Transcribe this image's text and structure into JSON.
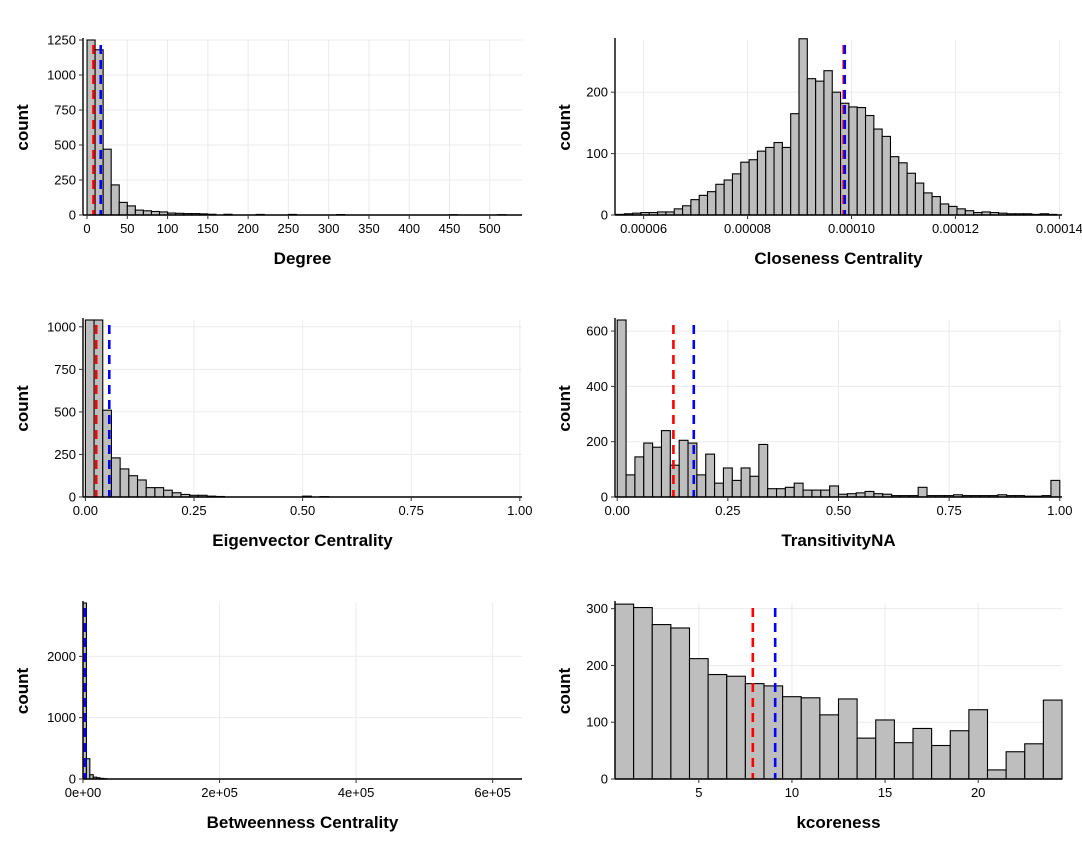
{
  "chart_data": [
    {
      "type": "bar",
      "panel": "degree",
      "xlabel": "Degree",
      "ylabel": "count",
      "xlim": [
        -5,
        540
      ],
      "ylim": [
        0,
        1250
      ],
      "x_ticks": [
        0,
        50,
        100,
        150,
        200,
        250,
        300,
        350,
        400,
        450,
        500
      ],
      "x_tick_labels": [
        "0",
        "50",
        "100",
        "150",
        "200",
        "250",
        "300",
        "350",
        "400",
        "450",
        "500"
      ],
      "y_ticks": [
        0,
        250,
        500,
        750,
        1000,
        1250
      ],
      "y_tick_labels": [
        "0",
        "250",
        "500",
        "750",
        "1000",
        "1250"
      ],
      "bin_width": 10,
      "bin_starts": [
        0,
        10,
        20,
        30,
        40,
        50,
        60,
        70,
        80,
        90,
        100,
        110,
        120,
        130,
        140,
        150,
        170,
        210,
        250,
        310,
        450,
        510
      ],
      "values": [
        1250,
        1180,
        470,
        215,
        90,
        65,
        35,
        30,
        25,
        22,
        14,
        12,
        10,
        10,
        8,
        5,
        5,
        4,
        4,
        3,
        2,
        2
      ],
      "mean_lines": [
        {
          "color": "#ff0000",
          "x": 8
        },
        {
          "color": "#0000ff",
          "x": 17
        }
      ]
    },
    {
      "type": "bar",
      "panel": "closeness",
      "xlabel": "Closeness Centrality",
      "ylabel": "count",
      "xlim": [
        5.45e-05,
        0.0001405
      ],
      "ylim": [
        0,
        285
      ],
      "x_ticks": [
        6e-05,
        8e-05,
        0.0001,
        0.00012,
        0.00014
      ],
      "x_tick_labels": [
        "0.00006",
        "0.00008",
        "0.00010",
        "0.00012",
        "0.00014"
      ],
      "y_ticks": [
        0,
        100,
        200
      ],
      "y_tick_labels": [
        "0",
        "100",
        "200"
      ],
      "bin_width": 1.6e-06,
      "bin_starts": [
        5.47e-05,
        5.63e-05,
        5.79e-05,
        5.95e-05,
        6.11e-05,
        6.27e-05,
        6.43e-05,
        6.59e-05,
        6.75e-05,
        6.91e-05,
        7.07e-05,
        7.23e-05,
        7.39e-05,
        7.55e-05,
        7.71e-05,
        7.87e-05,
        8.03e-05,
        8.19e-05,
        8.35e-05,
        8.51e-05,
        8.67e-05,
        8.83e-05,
        8.99e-05,
        9.15e-05,
        9.31e-05,
        9.47e-05,
        9.63e-05,
        9.79e-05,
        9.95e-05,
        0.0001011,
        0.0001027,
        0.0001043,
        0.0001059,
        0.0001075,
        0.0001091,
        0.0001107,
        0.0001123,
        0.0001139,
        0.0001155,
        0.0001171,
        0.0001187,
        0.0001203,
        0.0001219,
        0.0001235,
        0.0001251,
        0.0001267,
        0.0001283,
        0.0001299,
        0.0001315,
        0.0001331,
        0.0001347,
        0.0001363,
        0.0001379
      ],
      "values": [
        1,
        2,
        3,
        4,
        4,
        5,
        5,
        10,
        15,
        25,
        32,
        38,
        50,
        57,
        67,
        86,
        90,
        104,
        110,
        118,
        110,
        165,
        287,
        222,
        218,
        235,
        200,
        182,
        176,
        175,
        162,
        140,
        128,
        95,
        85,
        68,
        52,
        36,
        30,
        18,
        14,
        10,
        7,
        4,
        5,
        4,
        3,
        2,
        2,
        2,
        1,
        2,
        1
      ],
      "mean_lines": [
        {
          "color": "#ff0000",
          "x": 9.85e-05
        },
        {
          "color": "#0000ff",
          "x": 9.87e-05
        }
      ]
    },
    {
      "type": "bar",
      "panel": "eigenvector",
      "xlabel": "Eigenvector Centrality",
      "ylabel": "count",
      "xlim": [
        -0.0055,
        1.005
      ],
      "ylim": [
        0,
        1040
      ],
      "x_ticks": [
        0,
        0.25,
        0.5,
        0.75,
        1
      ],
      "x_tick_labels": [
        "0.00",
        "0.25",
        "0.50",
        "0.75",
        "1.00"
      ],
      "y_ticks": [
        0,
        250,
        500,
        750,
        1000
      ],
      "y_tick_labels": [
        "0",
        "250",
        "500",
        "750",
        "1000"
      ],
      "bin_width": 0.02,
      "bin_starts": [
        0,
        0.02,
        0.04,
        0.06,
        0.08,
        0.1,
        0.12,
        0.14,
        0.16,
        0.18,
        0.2,
        0.22,
        0.24,
        0.26,
        0.28,
        0.3,
        0.5,
        0.54
      ],
      "values": [
        1040,
        1040,
        510,
        230,
        165,
        125,
        100,
        55,
        55,
        40,
        25,
        15,
        10,
        10,
        5,
        3,
        5,
        2
      ],
      "mean_lines": [
        {
          "color": "#ff0000",
          "x": 0.025
        },
        {
          "color": "#0000ff",
          "x": 0.055
        }
      ]
    },
    {
      "type": "bar",
      "panel": "transitivity",
      "xlabel": "TransitivityNA",
      "ylabel": "count",
      "xlim": [
        -0.005,
        1.005
      ],
      "ylim": [
        0,
        640
      ],
      "x_ticks": [
        0,
        0.25,
        0.5,
        0.75,
        1
      ],
      "x_tick_labels": [
        "0.00",
        "0.25",
        "0.50",
        "0.75",
        "1.00"
      ],
      "y_ticks": [
        0,
        200,
        400,
        600
      ],
      "y_tick_labels": [
        "0",
        "200",
        "400",
        "600"
      ],
      "bin_width": 0.02,
      "bin_starts": [
        0,
        0.02,
        0.04,
        0.06,
        0.08,
        0.1,
        0.12,
        0.14,
        0.16,
        0.18,
        0.2,
        0.22,
        0.24,
        0.26,
        0.28,
        0.3,
        0.32,
        0.34,
        0.36,
        0.38,
        0.4,
        0.42,
        0.44,
        0.46,
        0.48,
        0.5,
        0.52,
        0.54,
        0.56,
        0.58,
        0.6,
        0.62,
        0.64,
        0.66,
        0.68,
        0.7,
        0.72,
        0.74,
        0.76,
        0.78,
        0.8,
        0.82,
        0.84,
        0.86,
        0.88,
        0.9,
        0.92,
        0.94,
        0.96,
        0.98
      ],
      "values": [
        640,
        80,
        145,
        195,
        180,
        240,
        115,
        205,
        195,
        80,
        155,
        50,
        105,
        60,
        105,
        75,
        190,
        30,
        30,
        35,
        50,
        25,
        25,
        25,
        40,
        10,
        12,
        15,
        20,
        12,
        10,
        5,
        5,
        5,
        35,
        5,
        5,
        5,
        8,
        5,
        5,
        5,
        5,
        8,
        5,
        5,
        3,
        3,
        5,
        60
      ],
      "mean_lines": [
        {
          "color": "#ff0000",
          "x": 0.127
        },
        {
          "color": "#0000ff",
          "x": 0.173
        }
      ]
    },
    {
      "type": "bar",
      "panel": "betweenness",
      "xlabel": "Betweenness Centrality",
      "ylabel": "count",
      "xlim": [
        0,
        643000
      ],
      "ylim": [
        0,
        2870
      ],
      "x_ticks": [
        0,
        200000,
        400000,
        600000
      ],
      "x_tick_labels": [
        "0e+00",
        "2e+05",
        "4e+05",
        "6e+05"
      ],
      "y_ticks": [
        0,
        1000,
        2000
      ],
      "y_tick_labels": [
        "0",
        "1000",
        "2000"
      ],
      "bin_width": 5000,
      "bin_starts": [
        0,
        5000,
        10000,
        15000,
        20000,
        25000,
        30000
      ],
      "values": [
        2870,
        330,
        70,
        30,
        20,
        10,
        5
      ],
      "mean_lines": [
        {
          "color": "#ff0000",
          "x": 2500
        },
        {
          "color": "#0000ff",
          "x": 3000
        }
      ]
    },
    {
      "type": "bar",
      "panel": "kcoreness",
      "xlabel": "kcoreness",
      "ylabel": "count",
      "xlim": [
        0.5,
        24.5
      ],
      "ylim": [
        0,
        310
      ],
      "x_ticks": [
        5,
        10,
        15,
        20
      ],
      "x_tick_labels": [
        "5",
        "10",
        "15",
        "20"
      ],
      "y_ticks": [
        0,
        100,
        200,
        300
      ],
      "y_tick_labels": [
        "0",
        "100",
        "200",
        "300"
      ],
      "bin_width": 1,
      "bin_starts": [
        0.5,
        1.5,
        2.5,
        3.5,
        4.5,
        5.5,
        6.5,
        7.5,
        8.5,
        9.5,
        10.5,
        11.5,
        12.5,
        13.5,
        14.5,
        15.5,
        16.5,
        17.5,
        18.5,
        19.5,
        20.5,
        21.5,
        22.5,
        23.5
      ],
      "values": [
        308,
        302,
        272,
        266,
        212,
        184,
        181,
        168,
        164,
        145,
        143,
        113,
        141,
        72,
        104,
        64,
        89,
        59,
        85,
        122,
        16,
        48,
        62,
        139
      ],
      "mean_lines": [
        {
          "color": "#ff0000",
          "x": 7.9
        },
        {
          "color": "#0000ff",
          "x": 9.1
        }
      ]
    }
  ]
}
